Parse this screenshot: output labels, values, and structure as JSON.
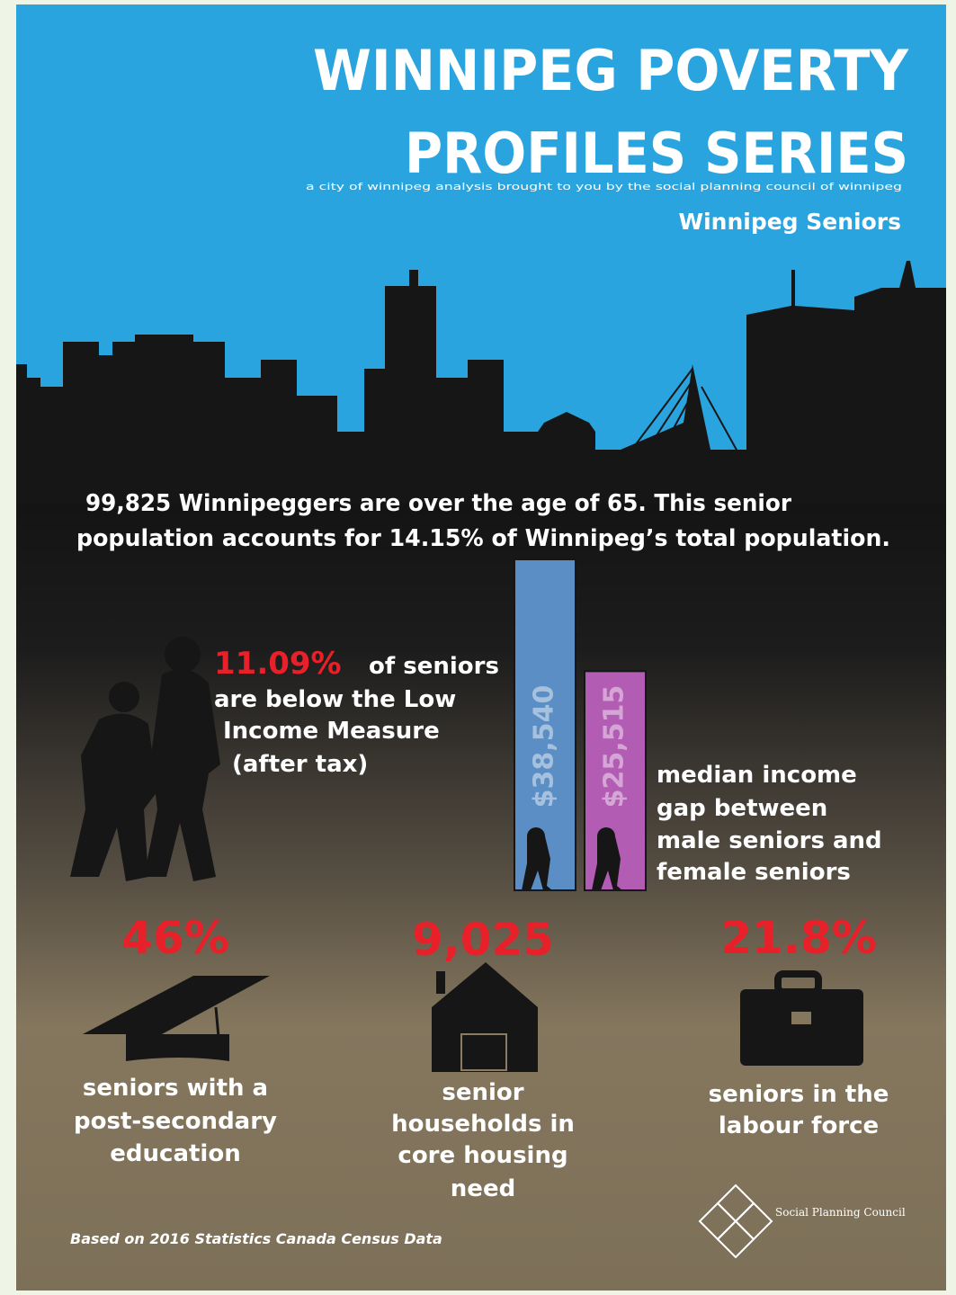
{
  "header": {
    "title_lines": [
      "WINNIPEG POVERTY",
      "PROFILES SERIES"
    ],
    "subtitle": "a city of winnipeg analysis brought to you by the social planning council of winnipeg",
    "topic": "Winnipeg Seniors"
  },
  "intro": [
    "99,825 Winnipeggers are over the age of 65. This senior",
    "population accounts for 14.15% of Winnipeg’s total population."
  ],
  "low_income": {
    "stat": "11.09%",
    "lines": [
      "of seniors",
      "are below the Low",
      "Income Measure",
      "(after tax)"
    ]
  },
  "income_gap": {
    "bars": [
      {
        "value": 38540,
        "label": "$38,540",
        "color": "#5b8ec4"
      },
      {
        "value": 25515,
        "label": "$25,515",
        "color": "#b25db3"
      }
    ],
    "lines": [
      "median income",
      "gap between",
      "male seniors and",
      "female seniors"
    ]
  },
  "stats": [
    {
      "value": "46%",
      "lines": [
        "seniors with a",
        "post-secondary",
        "education"
      ]
    },
    {
      "value": "9,025",
      "lines": [
        "senior",
        "households in",
        "core housing",
        "need"
      ]
    },
    {
      "value": "21.8%",
      "lines": [
        "seniors in the",
        "labour force"
      ]
    }
  ],
  "footer": {
    "source": "Based on 2016 Statistics Canada Census Data",
    "logo": "Social Planning Council"
  }
}
